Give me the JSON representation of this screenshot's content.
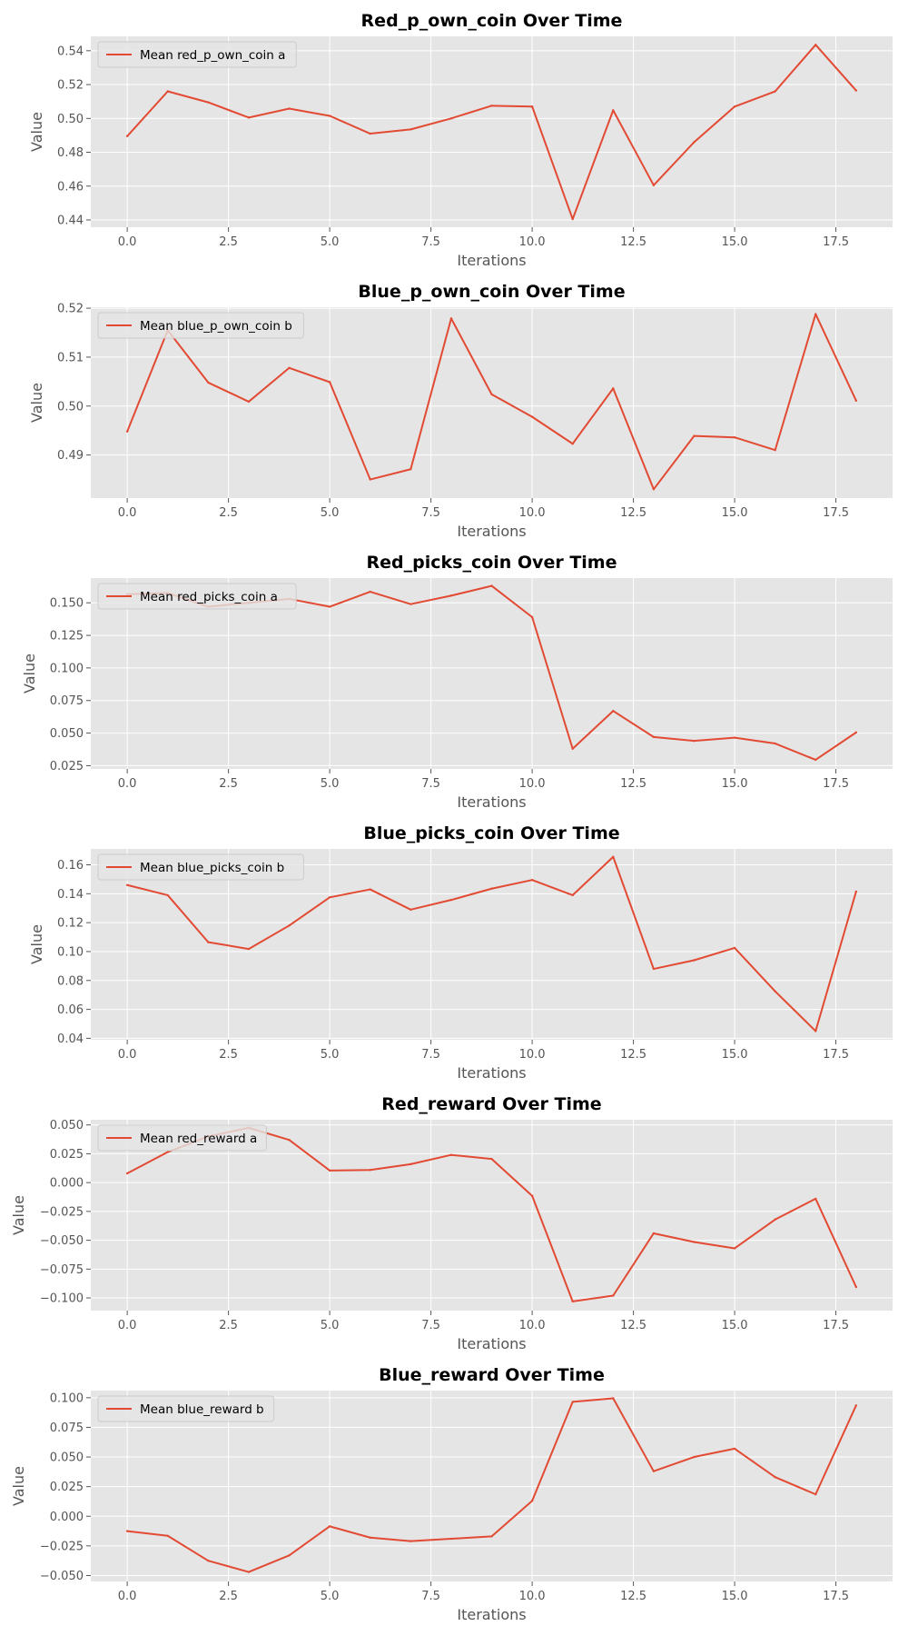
{
  "chart_data": [
    {
      "type": "line",
      "title": "Red_p_own_coin Over Time",
      "xlabel": "Iterations",
      "ylabel": "Value",
      "x": [
        0,
        1,
        2,
        3,
        4,
        5,
        6,
        7,
        8,
        9,
        10,
        11,
        12,
        13,
        14,
        15,
        16,
        17,
        18
      ],
      "xlim": [
        -0.9,
        18.9
      ],
      "xticks": [
        0.0,
        2.5,
        5.0,
        7.5,
        10.0,
        12.5,
        15.0,
        17.5
      ],
      "xtick_labels": [
        "0.0",
        "2.5",
        "5.0",
        "7.5",
        "10.0",
        "12.5",
        "15.0",
        "17.5"
      ],
      "ylim": [
        0.4357,
        0.5485
      ],
      "yticks": [
        0.44,
        0.46,
        0.48,
        0.5,
        0.52,
        0.54
      ],
      "ytick_labels": [
        "0.44",
        "0.46",
        "0.48",
        "0.50",
        "0.52",
        "0.54"
      ],
      "legend_position": "upper-left",
      "grid": true,
      "series": [
        {
          "name": "Mean red_p_own_coin a",
          "color": "#E24A33",
          "values": [
            0.4895,
            0.516,
            0.5095,
            0.5005,
            0.5058,
            0.5015,
            0.491,
            0.4935,
            0.5,
            0.5075,
            0.507,
            0.4405,
            0.5048,
            0.4605,
            0.486,
            0.507,
            0.516,
            0.5435,
            0.5165
          ]
        }
      ]
    },
    {
      "type": "line",
      "title": "Blue_p_own_coin Over Time",
      "xlabel": "Iterations",
      "ylabel": "Value",
      "x": [
        0,
        1,
        2,
        3,
        4,
        5,
        6,
        7,
        8,
        9,
        10,
        11,
        12,
        13,
        14,
        15,
        16,
        17,
        18
      ],
      "xlim": [
        -0.9,
        18.9
      ],
      "xticks": [
        0.0,
        2.5,
        5.0,
        7.5,
        10.0,
        12.5,
        15.0,
        17.5
      ],
      "xtick_labels": [
        "0.0",
        "2.5",
        "5.0",
        "7.5",
        "10.0",
        "12.5",
        "15.0",
        "17.5"
      ],
      "ylim": [
        0.4812,
        0.5202
      ],
      "yticks": [
        0.49,
        0.5,
        0.51,
        0.52
      ],
      "ytick_labels": [
        "0.49",
        "0.50",
        "0.51",
        "0.52"
      ],
      "legend_position": "upper-left",
      "grid": true,
      "series": [
        {
          "name": "Mean blue_p_own_coin b",
          "color": "#E24A33",
          "values": [
            0.4948,
            0.5155,
            0.5048,
            0.5009,
            0.5078,
            0.5049,
            0.485,
            0.4871,
            0.5179,
            0.5024,
            0.4978,
            0.4923,
            0.5036,
            0.483,
            0.4939,
            0.4936,
            0.491,
            0.5188,
            0.5011
          ]
        }
      ]
    },
    {
      "type": "line",
      "title": "Red_picks_coin Over Time",
      "xlabel": "Iterations",
      "ylabel": "Value",
      "x": [
        0,
        1,
        2,
        3,
        4,
        5,
        6,
        7,
        8,
        9,
        10,
        11,
        12,
        13,
        14,
        15,
        16,
        17,
        18
      ],
      "xlim": [
        -0.9,
        18.9
      ],
      "xticks": [
        0.0,
        2.5,
        5.0,
        7.5,
        10.0,
        12.5,
        15.0,
        17.5
      ],
      "xtick_labels": [
        "0.0",
        "2.5",
        "5.0",
        "7.5",
        "10.0",
        "12.5",
        "15.0",
        "17.5"
      ],
      "ylim": [
        0.0225,
        0.169
      ],
      "yticks": [
        0.025,
        0.05,
        0.075,
        0.1,
        0.125,
        0.15
      ],
      "ytick_labels": [
        "0.025",
        "0.050",
        "0.075",
        "0.100",
        "0.125",
        "0.150"
      ],
      "legend_position": "upper-left",
      "grid": true,
      "series": [
        {
          "name": "Mean red_picks_coin a",
          "color": "#E24A33",
          "values": [
            0.1565,
            0.1575,
            0.147,
            0.15,
            0.153,
            0.147,
            0.1585,
            0.149,
            0.1555,
            0.163,
            0.139,
            0.038,
            0.067,
            0.047,
            0.044,
            0.0465,
            0.042,
            0.0295,
            0.0505
          ]
        }
      ]
    },
    {
      "type": "line",
      "title": "Blue_picks_coin Over Time",
      "xlabel": "Iterations",
      "ylabel": "Value",
      "x": [
        0,
        1,
        2,
        3,
        4,
        5,
        6,
        7,
        8,
        9,
        10,
        11,
        12,
        13,
        14,
        15,
        16,
        17,
        18
      ],
      "xlim": [
        -0.9,
        18.9
      ],
      "xticks": [
        0.0,
        2.5,
        5.0,
        7.5,
        10.0,
        12.5,
        15.0,
        17.5
      ],
      "xtick_labels": [
        "0.0",
        "2.5",
        "5.0",
        "7.5",
        "10.0",
        "12.5",
        "15.0",
        "17.5"
      ],
      "ylim": [
        0.039,
        0.171
      ],
      "yticks": [
        0.04,
        0.06,
        0.08,
        0.1,
        0.12,
        0.14,
        0.16
      ],
      "ytick_labels": [
        "0.04",
        "0.06",
        "0.08",
        "0.10",
        "0.12",
        "0.14",
        "0.16"
      ],
      "legend_position": "upper-left",
      "grid": true,
      "series": [
        {
          "name": "Mean blue_picks_coin b",
          "color": "#E24A33",
          "values": [
            0.146,
            0.139,
            0.1065,
            0.1018,
            0.118,
            0.1375,
            0.143,
            0.129,
            0.1357,
            0.1435,
            0.1495,
            0.139,
            0.1655,
            0.088,
            0.094,
            0.1025,
            0.0725,
            0.045,
            0.1415
          ]
        }
      ]
    },
    {
      "type": "line",
      "title": "Red_reward Over Time",
      "xlabel": "Iterations",
      "ylabel": "Value",
      "x": [
        0,
        1,
        2,
        3,
        4,
        5,
        6,
        7,
        8,
        9,
        10,
        11,
        12,
        13,
        14,
        15,
        16,
        17,
        18
      ],
      "xlim": [
        -0.9,
        18.9
      ],
      "xticks": [
        0.0,
        2.5,
        5.0,
        7.5,
        10.0,
        12.5,
        15.0,
        17.5
      ],
      "xtick_labels": [
        "0.0",
        "2.5",
        "5.0",
        "7.5",
        "10.0",
        "12.5",
        "15.0",
        "17.5"
      ],
      "ylim": [
        -0.111,
        0.0545
      ],
      "yticks": [
        -0.1,
        -0.075,
        -0.05,
        -0.025,
        0.0,
        0.025,
        0.05
      ],
      "ytick_labels": [
        "−0.100",
        "−0.075",
        "−0.050",
        "−0.025",
        "0.000",
        "0.025",
        "0.050"
      ],
      "legend_position": "upper-left",
      "grid": true,
      "series": [
        {
          "name": "Mean red_reward a",
          "color": "#E24A33",
          "values": [
            0.008,
            0.0265,
            0.04,
            0.0475,
            0.037,
            0.0105,
            0.011,
            0.016,
            0.024,
            0.0205,
            -0.0115,
            -0.103,
            -0.098,
            -0.044,
            -0.0515,
            -0.057,
            -0.032,
            -0.014,
            -0.0905
          ]
        }
      ]
    },
    {
      "type": "line",
      "title": "Blue_reward Over Time",
      "xlabel": "Iterations",
      "ylabel": "Value",
      "x": [
        0,
        1,
        2,
        3,
        4,
        5,
        6,
        7,
        8,
        9,
        10,
        11,
        12,
        13,
        14,
        15,
        16,
        17,
        18
      ],
      "xlim": [
        -0.9,
        18.9
      ],
      "xticks": [
        0.0,
        2.5,
        5.0,
        7.5,
        10.0,
        12.5,
        15.0,
        17.5
      ],
      "xtick_labels": [
        "0.0",
        "2.5",
        "5.0",
        "7.5",
        "10.0",
        "12.5",
        "15.0",
        "17.5"
      ],
      "ylim": [
        -0.055,
        0.106
      ],
      "yticks": [
        -0.05,
        -0.025,
        0.0,
        0.025,
        0.05,
        0.075,
        0.1
      ],
      "ytick_labels": [
        "−0.050",
        "−0.025",
        "0.000",
        "0.025",
        "0.050",
        "0.075",
        "0.100"
      ],
      "legend_position": "upper-left",
      "grid": true,
      "series": [
        {
          "name": "Mean blue_reward b",
          "color": "#E24A33",
          "values": [
            -0.0125,
            -0.0165,
            -0.0375,
            -0.047,
            -0.033,
            -0.0085,
            -0.018,
            -0.021,
            -0.019,
            -0.017,
            0.013,
            0.0965,
            0.0995,
            0.038,
            0.05,
            0.057,
            0.033,
            0.0185,
            0.0935
          ]
        }
      ]
    }
  ]
}
